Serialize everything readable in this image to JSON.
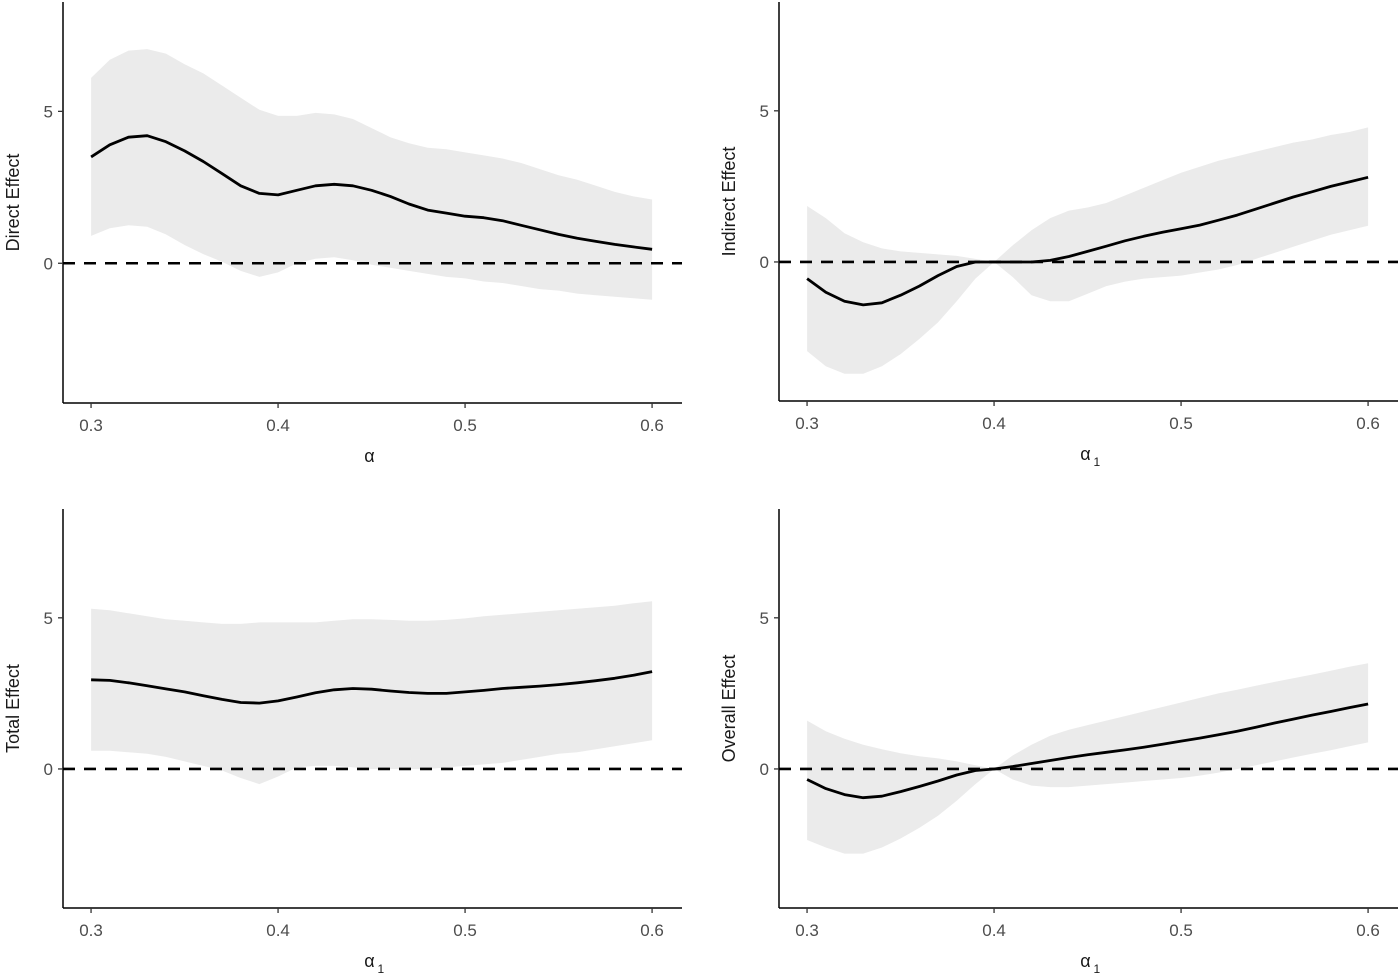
{
  "chart_data": [
    {
      "type": "line",
      "xlabel": "α",
      "xlabel_sub": "",
      "ylabel": "Direct Effect",
      "xlim": [
        0.285,
        0.616
      ],
      "ylim": [
        -4.6,
        8.6
      ],
      "xticks": [
        0.3,
        0.4,
        0.5,
        0.6
      ],
      "xtick_labels": [
        "0.3",
        "0.4",
        "0.5",
        "0.6"
      ],
      "yticks": [
        0,
        5
      ],
      "ytick_labels": [
        "0",
        "5"
      ],
      "reference_line": 0,
      "x": [
        0.3,
        0.31,
        0.32,
        0.33,
        0.34,
        0.35,
        0.36,
        0.37,
        0.38,
        0.39,
        0.4,
        0.41,
        0.42,
        0.43,
        0.44,
        0.45,
        0.46,
        0.47,
        0.48,
        0.49,
        0.5,
        0.51,
        0.52,
        0.53,
        0.54,
        0.55,
        0.56,
        0.57,
        0.58,
        0.59,
        0.6
      ],
      "estimate": [
        3.5,
        3.9,
        4.15,
        4.2,
        4.0,
        3.7,
        3.35,
        2.95,
        2.55,
        2.3,
        2.25,
        2.4,
        2.55,
        2.6,
        2.55,
        2.4,
        2.2,
        1.95,
        1.75,
        1.65,
        1.55,
        1.5,
        1.4,
        1.25,
        1.1,
        0.95,
        0.82,
        0.72,
        0.62,
        0.54,
        0.46
      ],
      "lower": [
        0.9,
        1.15,
        1.25,
        1.2,
        0.95,
        0.6,
        0.3,
        0.05,
        -0.25,
        -0.45,
        -0.3,
        0.0,
        0.15,
        0.2,
        0.1,
        -0.05,
        -0.15,
        -0.25,
        -0.35,
        -0.45,
        -0.5,
        -0.6,
        -0.65,
        -0.75,
        -0.85,
        -0.9,
        -1.0,
        -1.05,
        -1.1,
        -1.15,
        -1.2
      ],
      "upper": [
        6.1,
        6.7,
        7.0,
        7.05,
        6.9,
        6.55,
        6.25,
        5.85,
        5.45,
        5.05,
        4.85,
        4.85,
        4.95,
        4.9,
        4.75,
        4.45,
        4.15,
        3.95,
        3.8,
        3.75,
        3.65,
        3.55,
        3.45,
        3.3,
        3.1,
        2.9,
        2.75,
        2.55,
        2.35,
        2.2,
        2.1
      ]
    },
    {
      "type": "line",
      "xlabel": "α",
      "xlabel_sub": "1",
      "ylabel": "Indirect Effect",
      "xlim": [
        0.285,
        0.616
      ],
      "ylim": [
        -4.6,
        8.6
      ],
      "xticks": [
        0.3,
        0.4,
        0.5,
        0.6
      ],
      "xtick_labels": [
        "0.3",
        "0.4",
        "0.5",
        "0.6"
      ],
      "yticks": [
        0,
        5
      ],
      "ytick_labels": [
        "0",
        "5"
      ],
      "reference_line": 0,
      "x": [
        0.3,
        0.31,
        0.32,
        0.33,
        0.34,
        0.35,
        0.36,
        0.37,
        0.38,
        0.39,
        0.4,
        0.41,
        0.42,
        0.43,
        0.44,
        0.45,
        0.46,
        0.47,
        0.48,
        0.49,
        0.5,
        0.51,
        0.52,
        0.53,
        0.54,
        0.55,
        0.56,
        0.57,
        0.58,
        0.59,
        0.6
      ],
      "estimate": [
        -0.55,
        -1.0,
        -1.3,
        -1.42,
        -1.35,
        -1.1,
        -0.8,
        -0.45,
        -0.15,
        0.0,
        0.0,
        0.0,
        0.0,
        0.05,
        0.18,
        0.35,
        0.52,
        0.7,
        0.85,
        0.98,
        1.1,
        1.22,
        1.38,
        1.55,
        1.75,
        1.95,
        2.15,
        2.32,
        2.5,
        2.65,
        2.8
      ],
      "lower": [
        -2.95,
        -3.45,
        -3.7,
        -3.7,
        -3.45,
        -3.05,
        -2.55,
        -2.0,
        -1.3,
        -0.55,
        0.0,
        -0.5,
        -1.1,
        -1.3,
        -1.3,
        -1.05,
        -0.8,
        -0.65,
        -0.55,
        -0.5,
        -0.45,
        -0.35,
        -0.25,
        -0.1,
        0.1,
        0.3,
        0.5,
        0.7,
        0.9,
        1.05,
        1.2
      ],
      "upper": [
        1.85,
        1.45,
        0.95,
        0.65,
        0.45,
        0.35,
        0.3,
        0.25,
        0.2,
        0.1,
        0.0,
        0.55,
        1.05,
        1.45,
        1.7,
        1.8,
        1.95,
        2.2,
        2.45,
        2.7,
        2.95,
        3.15,
        3.35,
        3.5,
        3.65,
        3.8,
        3.95,
        4.05,
        4.2,
        4.3,
        4.45
      ]
    },
    {
      "type": "line",
      "xlabel": "α",
      "xlabel_sub": "1",
      "ylabel": "Total Effect",
      "xlim": [
        0.285,
        0.616
      ],
      "ylim": [
        -4.6,
        8.6
      ],
      "xticks": [
        0.3,
        0.4,
        0.5,
        0.6
      ],
      "xtick_labels": [
        "0.3",
        "0.4",
        "0.5",
        "0.6"
      ],
      "yticks": [
        0,
        5
      ],
      "ytick_labels": [
        "0",
        "5"
      ],
      "reference_line": 0,
      "x": [
        0.3,
        0.31,
        0.32,
        0.33,
        0.34,
        0.35,
        0.36,
        0.37,
        0.38,
        0.39,
        0.4,
        0.41,
        0.42,
        0.43,
        0.44,
        0.45,
        0.46,
        0.47,
        0.48,
        0.49,
        0.5,
        0.51,
        0.52,
        0.53,
        0.54,
        0.55,
        0.56,
        0.57,
        0.58,
        0.59,
        0.6
      ],
      "estimate": [
        2.95,
        2.93,
        2.85,
        2.75,
        2.65,
        2.55,
        2.42,
        2.3,
        2.2,
        2.18,
        2.25,
        2.38,
        2.52,
        2.62,
        2.66,
        2.64,
        2.58,
        2.53,
        2.5,
        2.5,
        2.55,
        2.6,
        2.66,
        2.7,
        2.74,
        2.79,
        2.85,
        2.92,
        3.0,
        3.1,
        3.22
      ],
      "lower": [
        0.6,
        0.6,
        0.55,
        0.5,
        0.4,
        0.25,
        0.1,
        -0.05,
        -0.3,
        -0.5,
        -0.25,
        0.05,
        0.1,
        0.1,
        0.05,
        0.0,
        0.0,
        0.0,
        0.0,
        0.05,
        0.1,
        0.15,
        0.2,
        0.3,
        0.4,
        0.5,
        0.55,
        0.65,
        0.75,
        0.85,
        0.95
      ],
      "upper": [
        5.3,
        5.25,
        5.15,
        5.05,
        4.95,
        4.9,
        4.85,
        4.8,
        4.8,
        4.85,
        4.85,
        4.85,
        4.85,
        4.9,
        4.95,
        4.95,
        4.93,
        4.9,
        4.9,
        4.93,
        4.98,
        5.05,
        5.1,
        5.15,
        5.2,
        5.25,
        5.3,
        5.35,
        5.4,
        5.48,
        5.55
      ]
    },
    {
      "type": "line",
      "xlabel": "α",
      "xlabel_sub": "1",
      "ylabel": "Overall Effect",
      "xlim": [
        0.285,
        0.616
      ],
      "ylim": [
        -4.6,
        8.6
      ],
      "xticks": [
        0.3,
        0.4,
        0.5,
        0.6
      ],
      "xtick_labels": [
        "0.3",
        "0.4",
        "0.5",
        "0.6"
      ],
      "yticks": [
        0,
        5
      ],
      "ytick_labels": [
        "0",
        "5"
      ],
      "reference_line": 0,
      "x": [
        0.3,
        0.31,
        0.32,
        0.33,
        0.34,
        0.35,
        0.36,
        0.37,
        0.38,
        0.39,
        0.4,
        0.41,
        0.42,
        0.43,
        0.44,
        0.45,
        0.46,
        0.47,
        0.48,
        0.49,
        0.5,
        0.51,
        0.52,
        0.53,
        0.54,
        0.55,
        0.56,
        0.57,
        0.58,
        0.59,
        0.6
      ],
      "estimate": [
        -0.35,
        -0.65,
        -0.85,
        -0.95,
        -0.9,
        -0.75,
        -0.58,
        -0.4,
        -0.2,
        -0.05,
        0.0,
        0.08,
        0.18,
        0.28,
        0.38,
        0.47,
        0.55,
        0.63,
        0.72,
        0.82,
        0.92,
        1.02,
        1.13,
        1.25,
        1.38,
        1.52,
        1.65,
        1.78,
        1.9,
        2.03,
        2.15
      ],
      "lower": [
        -2.35,
        -2.6,
        -2.8,
        -2.8,
        -2.6,
        -2.3,
        -1.95,
        -1.55,
        -1.05,
        -0.5,
        0.0,
        -0.35,
        -0.55,
        -0.6,
        -0.6,
        -0.55,
        -0.5,
        -0.45,
        -0.4,
        -0.35,
        -0.3,
        -0.22,
        -0.12,
        0.0,
        0.12,
        0.25,
        0.38,
        0.5,
        0.62,
        0.75,
        0.88
      ],
      "upper": [
        1.6,
        1.25,
        1.0,
        0.8,
        0.65,
        0.52,
        0.42,
        0.35,
        0.25,
        0.12,
        0.0,
        0.45,
        0.8,
        1.1,
        1.3,
        1.45,
        1.6,
        1.75,
        1.9,
        2.05,
        2.2,
        2.35,
        2.5,
        2.62,
        2.75,
        2.88,
        3.0,
        3.12,
        3.25,
        3.38,
        3.5
      ]
    }
  ]
}
